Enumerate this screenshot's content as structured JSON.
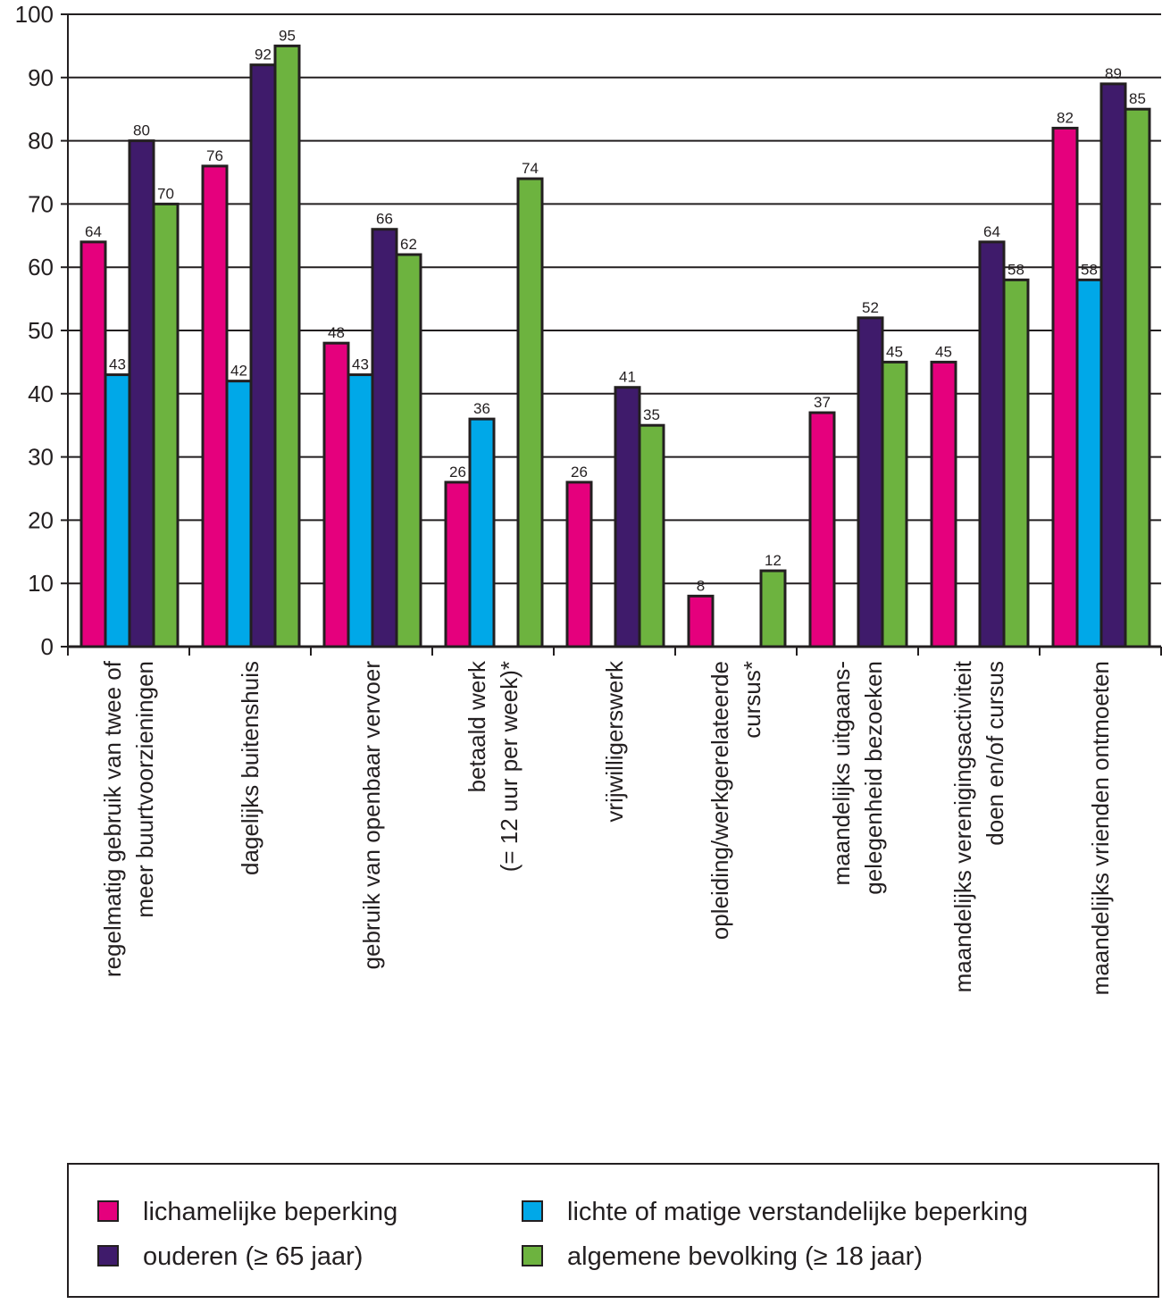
{
  "chart_data": {
    "type": "bar",
    "categories": [
      [
        "regelmatig gebruik van twee of",
        "meer buurtvoorzieningen"
      ],
      [
        "dagelijks buitenshuis"
      ],
      [
        "gebruik van openbaar vervoer"
      ],
      [
        "betaald werk",
        "(= 12 uur per week)*"
      ],
      [
        "vrijwilligerswerk"
      ],
      [
        "opleiding/werkgerelateerde",
        "cursus*"
      ],
      [
        "maandelijks uitgaans-",
        "gelegenheid bezoeken"
      ],
      [
        "maandelijks verenigingsactiviteit",
        "doen en/of cursus"
      ],
      [
        "maandelijks vrienden ontmoeten"
      ]
    ],
    "series": [
      {
        "name": "lichamelijke beperking",
        "color": "#e5007d",
        "values": [
          64,
          76,
          48,
          26,
          26,
          8,
          37,
          45,
          82
        ]
      },
      {
        "name": "lichte of matige verstandelijke beperking",
        "color": "#00a8e8",
        "values": [
          43,
          42,
          43,
          36,
          null,
          null,
          null,
          null,
          58
        ]
      },
      {
        "name": "ouderen (≥ 65 jaar)",
        "color": "#3f1b6b",
        "values": [
          80,
          92,
          66,
          null,
          41,
          null,
          52,
          64,
          89
        ]
      },
      {
        "name": "algemene bevolking (≥ 18 jaar)",
        "color": "#6db33f",
        "values": [
          70,
          95,
          62,
          74,
          35,
          12,
          45,
          58,
          85
        ]
      }
    ],
    "ylim": [
      0,
      100
    ],
    "yticks": [
      0,
      10,
      20,
      30,
      40,
      50,
      60,
      70,
      80,
      90,
      100
    ],
    "grid": true,
    "legend": "bottom"
  }
}
